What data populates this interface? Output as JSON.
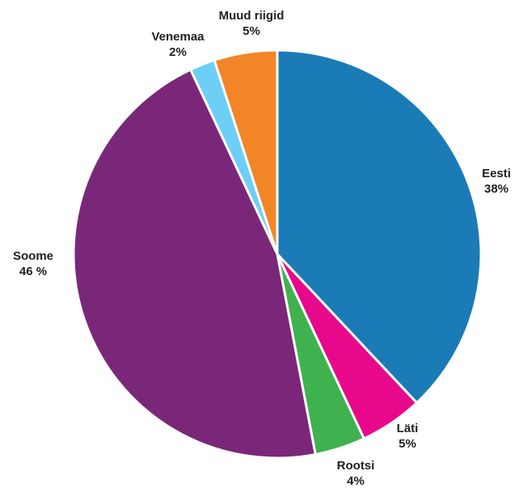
{
  "chart_data": {
    "type": "pie",
    "title": "",
    "slices": [
      {
        "name": "Eesti",
        "value": 38,
        "value_label": "38%",
        "color": "#1a7bb6"
      },
      {
        "name": "Läti",
        "value": 5,
        "value_label": "5%",
        "color": "#e8088c"
      },
      {
        "name": "Rootsi",
        "value": 4,
        "value_label": "4%",
        "color": "#40b14f"
      },
      {
        "name": "Soome",
        "value": 46,
        "value_label": "46 %",
        "color": "#7a2779"
      },
      {
        "name": "Venemaa",
        "value": 2,
        "value_label": "2%",
        "color": "#6dcff6"
      },
      {
        "name": "Muud riigid",
        "value": 5,
        "value_label": "5%",
        "color": "#f28527"
      }
    ],
    "start_angle": "12 o'clock",
    "direction": "clockwise",
    "legend": "none"
  }
}
